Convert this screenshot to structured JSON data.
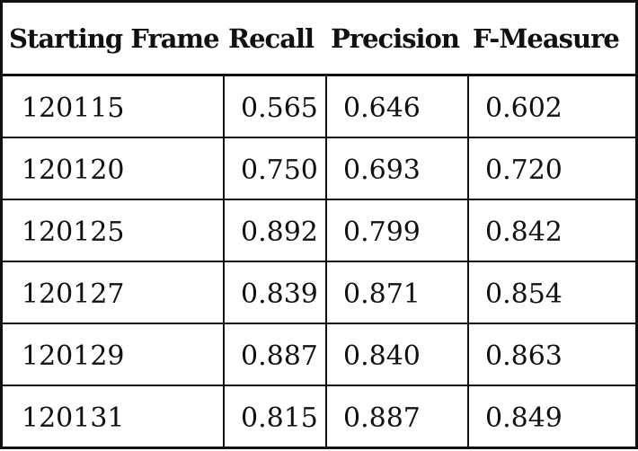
{
  "table": {
    "headers": [
      "Starting Frame",
      "Recall",
      "Precision",
      "F-Measure"
    ],
    "rows": [
      [
        "120115",
        "0.565",
        "0.646",
        "0.602"
      ],
      [
        "120120",
        "0.750",
        "0.693",
        "0.720"
      ],
      [
        "120125",
        "0.892",
        "0.799",
        "0.842"
      ],
      [
        "120127",
        "0.839",
        "0.871",
        "0.854"
      ],
      [
        "120129",
        "0.887",
        "0.840",
        "0.863"
      ],
      [
        "120131",
        "0.815",
        "0.887",
        "0.849"
      ]
    ]
  }
}
